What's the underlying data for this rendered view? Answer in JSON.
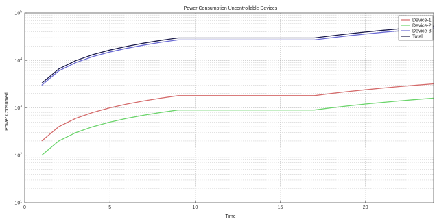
{
  "chart_data": {
    "type": "line",
    "title": "Power Consumption Uncontrollable Devices",
    "xlabel": "Time",
    "ylabel": "Power Consumed",
    "xlim": [
      0,
      24
    ],
    "ylim": [
      10,
      100000
    ],
    "yscale": "log",
    "grid": true,
    "legend_position": "top-right",
    "x_ticks": [
      0,
      5,
      10,
      15,
      20
    ],
    "y_ticks": [
      {
        "value": 10,
        "base": "10",
        "exp": "1"
      },
      {
        "value": 100,
        "base": "10",
        "exp": "2"
      },
      {
        "value": 1000,
        "base": "10",
        "exp": "3"
      },
      {
        "value": 10000,
        "base": "10",
        "exp": "4"
      },
      {
        "value": 100000,
        "base": "10",
        "exp": "5"
      }
    ],
    "x": [
      1,
      2,
      3,
      4,
      5,
      6,
      7,
      8,
      9,
      10,
      11,
      12,
      13,
      14,
      15,
      16,
      17,
      18,
      19,
      20,
      21,
      22,
      23,
      24
    ],
    "series": [
      {
        "name": "Device-1",
        "color": "#d46a6a",
        "values": [
          200,
          400,
          600,
          800,
          1000,
          1200,
          1400,
          1600,
          1800,
          1800,
          1800,
          1800,
          1800,
          1800,
          1800,
          1800,
          1800,
          2000,
          2200,
          2400,
          2600,
          2800,
          3000,
          3200
        ]
      },
      {
        "name": "Device-2",
        "color": "#6ad46a",
        "values": [
          100,
          200,
          300,
          400,
          500,
          600,
          700,
          800,
          900,
          900,
          900,
          900,
          900,
          900,
          900,
          900,
          900,
          1000,
          1100,
          1200,
          1300,
          1400,
          1500,
          1600
        ]
      },
      {
        "name": "Device-3",
        "color": "#6a6ad4",
        "values": [
          3000,
          6000,
          9000,
          12000,
          15000,
          18000,
          21000,
          24000,
          27000,
          27000,
          27000,
          27000,
          27000,
          27000,
          27000,
          27000,
          27000,
          30000,
          33000,
          36000,
          39000,
          42000,
          45000,
          48000
        ]
      },
      {
        "name": "Total",
        "color": "#1a1a4a",
        "values": [
          3300,
          6600,
          9900,
          13200,
          16500,
          19800,
          23100,
          26400,
          29700,
          29700,
          29700,
          29700,
          29700,
          29700,
          29700,
          29700,
          29700,
          33000,
          36300,
          39600,
          42900,
          46200,
          49500,
          52800
        ]
      }
    ]
  }
}
